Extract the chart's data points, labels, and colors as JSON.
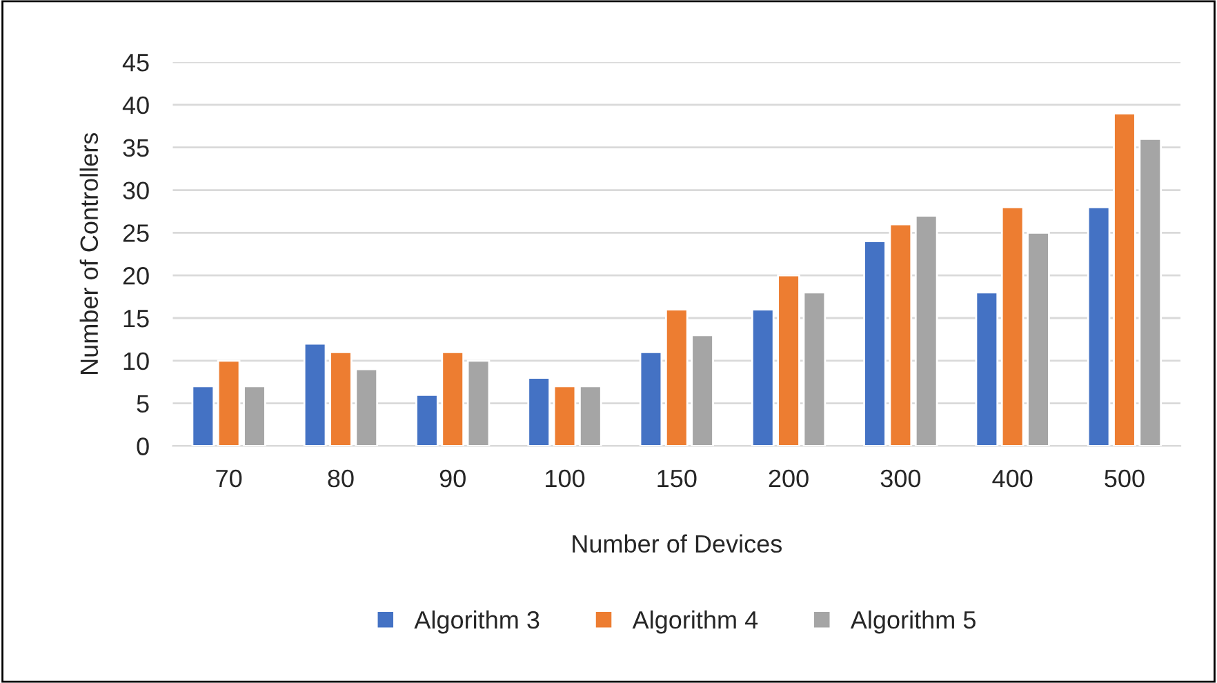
{
  "chart_data": {
    "type": "bar",
    "xlabel": "Number of Devices",
    "ylabel": "Number of Controllers",
    "categories": [
      "70",
      "80",
      "90",
      "100",
      "150",
      "200",
      "300",
      "400",
      "500"
    ],
    "series": [
      {
        "name": "Algorithm 3",
        "color": "#4472c4",
        "values": [
          7,
          12,
          6,
          8,
          11,
          16,
          24,
          18,
          28
        ]
      },
      {
        "name": "Algorithm 4",
        "color": "#ed7d31",
        "values": [
          10,
          11,
          11,
          7,
          16,
          20,
          26,
          28,
          39
        ]
      },
      {
        "name": "Algorithm 5",
        "color": "#a5a5a5",
        "values": [
          7,
          9,
          10,
          7,
          13,
          18,
          27,
          25,
          36
        ]
      }
    ],
    "ylim": [
      0,
      45
    ],
    "yticks": [
      0,
      5,
      10,
      15,
      20,
      25,
      30,
      35,
      40,
      45
    ],
    "grid": "y",
    "legend": "bottom"
  }
}
